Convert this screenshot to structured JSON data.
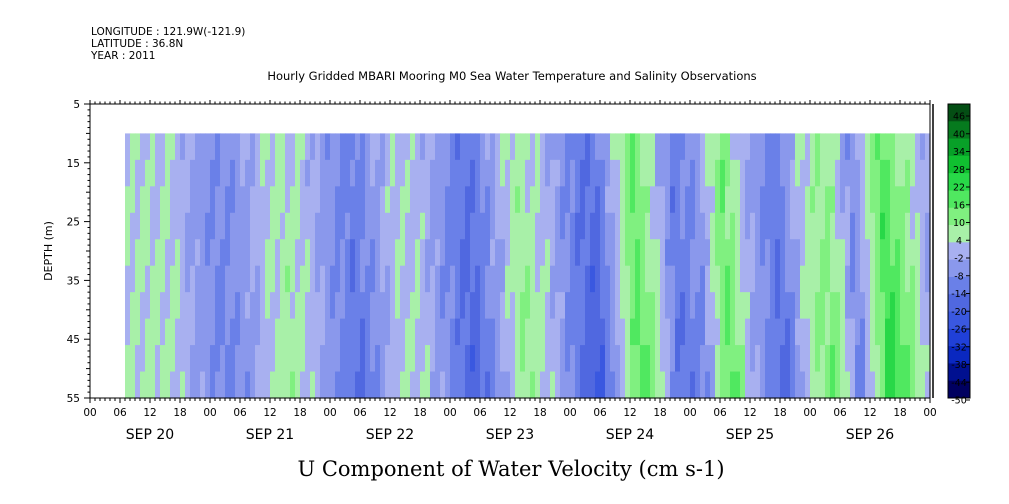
{
  "header": {
    "longitude": "LONGITUDE : 121.9W(-121.9)",
    "latitude": "LATITUDE : 36.8N",
    "year": "YEAR : 2011"
  },
  "chart_data": {
    "type": "heatmap",
    "title": "Hourly Gridded MBARI Mooring M0 Sea Water Temperature and Salinity Observations",
    "xlabel": "U Component of Water Velocity (cm s-1)",
    "ylabel": "DEPTH (m)",
    "x_day_labels": [
      "SEP 20",
      "SEP 21",
      "SEP 22",
      "SEP 23",
      "SEP 24",
      "SEP 25",
      "SEP 26"
    ],
    "x_hour_labels": [
      "00",
      "06",
      "12",
      "18"
    ],
    "x_range_hours_from_sep20_00": [
      0,
      168
    ],
    "data_start_hour": 7,
    "y_ticks": [
      5,
      15,
      25,
      35,
      45,
      55
    ],
    "ylim": [
      55,
      5
    ],
    "data_depth_top": 10,
    "colorbar": {
      "labels": [
        "46",
        "40",
        "34",
        "28",
        "22",
        "16",
        "10",
        "4",
        "-2",
        "-8",
        "-14",
        "-20",
        "-26",
        "-32",
        "-38",
        "-44",
        "-50"
      ],
      "levels": [
        -50,
        -44,
        -38,
        -32,
        -26,
        -20,
        -14,
        -8,
        -2,
        4,
        10,
        16,
        22,
        28,
        34,
        40,
        46,
        52
      ],
      "colors": [
        "#000060",
        "#001090",
        "#0a28c0",
        "#2040d8",
        "#3a58e0",
        "#5068e0",
        "#6a80e8",
        "#8a98ec",
        "#a8b0f0",
        "#a8f0a8",
        "#80f080",
        "#50e860",
        "#28d848",
        "#10c030",
        "#08a028",
        "#067a1e",
        "#044e14"
      ]
    },
    "u_velocity_bands": [
      {
        "hour": 7,
        "value": 4
      },
      {
        "hour": 11,
        "value": 6
      },
      {
        "hour": 16,
        "value": 4
      },
      {
        "hour": 20,
        "value": -4
      },
      {
        "hour": 25,
        "value": -10
      },
      {
        "hour": 30,
        "value": -5
      },
      {
        "hour": 34,
        "value": 3
      },
      {
        "hour": 38,
        "value": 8
      },
      {
        "hour": 42,
        "value": 4
      },
      {
        "hour": 46,
        "value": -5
      },
      {
        "hour": 52,
        "value": -14
      },
      {
        "hour": 56,
        "value": -6
      },
      {
        "hour": 60,
        "value": 4
      },
      {
        "hour": 65,
        "value": 3
      },
      {
        "hour": 69,
        "value": -6
      },
      {
        "hour": 75,
        "value": -18
      },
      {
        "hour": 80,
        "value": -4
      },
      {
        "hour": 85,
        "value": 10
      },
      {
        "hour": 90,
        "value": 3
      },
      {
        "hour": 95,
        "value": -10
      },
      {
        "hour": 100,
        "value": -20
      },
      {
        "hour": 104,
        "value": 0
      },
      {
        "hour": 108,
        "value": 20
      },
      {
        "hour": 112,
        "value": 6
      },
      {
        "hour": 116,
        "value": -14
      },
      {
        "hour": 121,
        "value": -8
      },
      {
        "hour": 126,
        "value": 18
      },
      {
        "hour": 131,
        "value": -2
      },
      {
        "hour": 137,
        "value": -16
      },
      {
        "hour": 142,
        "value": 6
      },
      {
        "hour": 147,
        "value": 14
      },
      {
        "hour": 152,
        "value": -10
      },
      {
        "hour": 158,
        "value": 24
      },
      {
        "hour": 163,
        "value": 10
      },
      {
        "hour": 168,
        "value": -6
      }
    ]
  }
}
